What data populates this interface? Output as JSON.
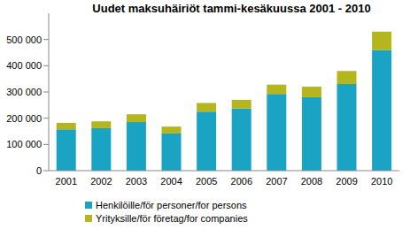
{
  "chart_data": {
    "type": "bar",
    "title": "Uudet maksuhäiriöt tammi-kesäkuussa 2001 - 2010",
    "categories": [
      "2001",
      "2002",
      "2003",
      "2004",
      "2005",
      "2006",
      "2007",
      "2008",
      "2009",
      "2010"
    ],
    "series": [
      {
        "name": "Henkilöille/för personer/for persons",
        "color": "#1aa3c2",
        "values": [
          158000,
          162000,
          185000,
          142000,
          225000,
          237000,
          292000,
          280000,
          330000,
          460000
        ]
      },
      {
        "name": "Yrityksille/för företag/for companies",
        "color": "#b5b51e",
        "values": [
          24000,
          26000,
          30000,
          26000,
          33000,
          33000,
          36000,
          40000,
          50000,
          70000
        ]
      }
    ],
    "stacked": true,
    "ylim": [
      0,
      600000
    ],
    "yticks": [
      0,
      {
        "value": 100000,
        "label": "100 000"
      },
      {
        "value": 200000,
        "label": "200 000"
      },
      {
        "value": 300000,
        "label": "300 000"
      },
      {
        "value": 400000,
        "label": "400 000"
      },
      {
        "value": 500000,
        "label": "500 000"
      }
    ],
    "grid": false
  }
}
